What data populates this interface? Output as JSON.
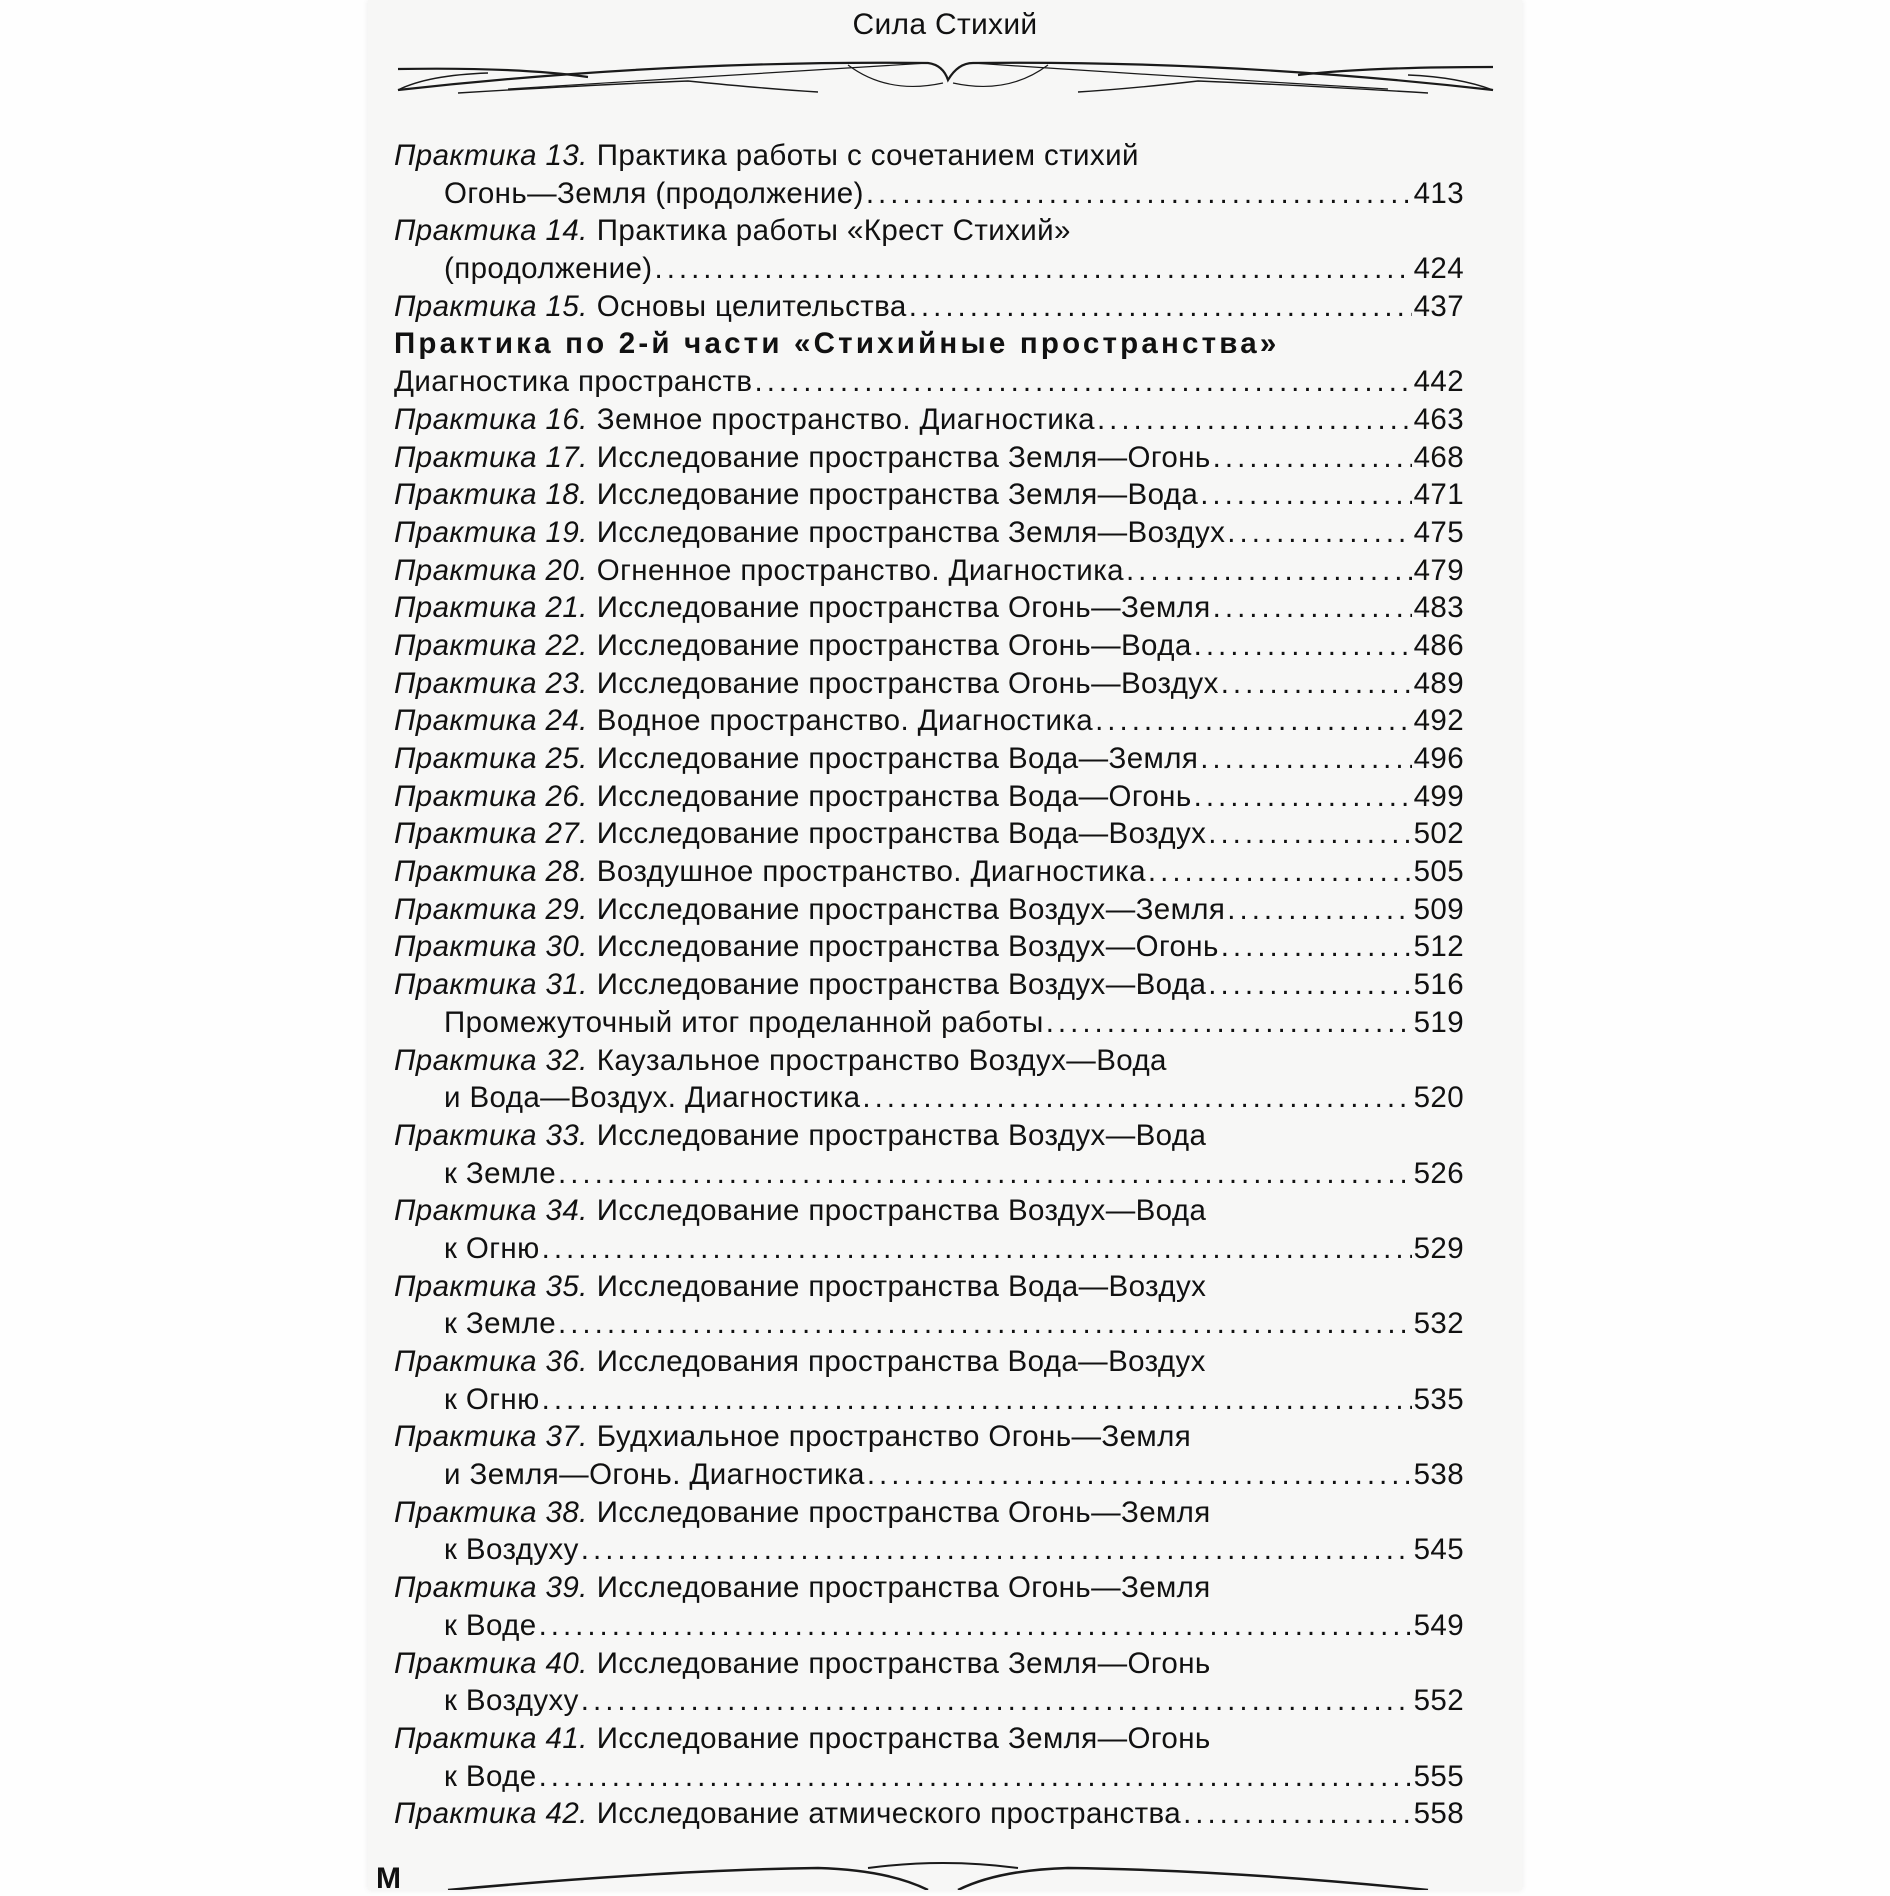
{
  "running_title": "Сила Стихий",
  "publisher_mark": "M",
  "toc": [
    {
      "prefix": "Практика 13.",
      "title": "Практика работы с сочетанием стихий",
      "cont": "Огонь—Земля (продолжение)",
      "page": "413"
    },
    {
      "prefix": "Практика 14.",
      "title": "Практика работы «Крест Стихий»",
      "cont": "(продолжение)",
      "page": "424"
    },
    {
      "prefix": "Практика 15.",
      "title": "Основы целительства",
      "page": "437"
    },
    {
      "heading": "Практика по 2-й части «Стихийные пространства»"
    },
    {
      "title": "Диагностика пространств",
      "page": "442"
    },
    {
      "prefix": "Практика 16.",
      "title": "Земное пространство. Диагностика",
      "page": "463"
    },
    {
      "prefix": "Практика 17.",
      "title": "Исследование пространства Земля—Огонь",
      "page": "468"
    },
    {
      "prefix": "Практика 18.",
      "title": "Исследование пространства Земля—Вода",
      "page": "471"
    },
    {
      "prefix": "Практика 19.",
      "title": "Исследование пространства Земля—Воздух",
      "page": "475"
    },
    {
      "prefix": "Практика 20.",
      "title": "Огненное пространство. Диагностика",
      "page": "479"
    },
    {
      "prefix": "Практика 21.",
      "title": "Исследование пространства Огонь—Земля",
      "page": "483"
    },
    {
      "prefix": "Практика 22.",
      "title": "Исследование пространства Огонь—Вода",
      "page": "486"
    },
    {
      "prefix": "Практика 23.",
      "title": "Исследование пространства Огонь—Воздух",
      "page": "489"
    },
    {
      "prefix": "Практика 24.",
      "title": "Водное пространство. Диагностика",
      "page": "492"
    },
    {
      "prefix": "Практика 25.",
      "title": "Исследование пространства Вода—Земля",
      "page": "496"
    },
    {
      "prefix": "Практика 26.",
      "title": "Исследование пространства Вода—Огонь",
      "page": "499"
    },
    {
      "prefix": "Практика 27.",
      "title": "Исследование пространства Вода—Воздух",
      "page": "502"
    },
    {
      "prefix": "Практика 28.",
      "title": "Воздушное пространство. Диагностика",
      "page": "505"
    },
    {
      "prefix": "Практика 29.",
      "title": "Исследование пространства Воздух—Земля",
      "page": "509"
    },
    {
      "prefix": "Практика 30.",
      "title": "Исследование пространства Воздух—Огонь",
      "page": "512"
    },
    {
      "prefix": "Практика 31.",
      "title": "Исследование пространства Воздух—Вода",
      "page": "516"
    },
    {
      "indent": true,
      "title": "Промежуточный итог проделанной работы",
      "page": "519"
    },
    {
      "prefix": "Практика 32.",
      "title": "Каузальное пространство Воздух—Вода",
      "cont": "и Вода—Воздух. Диагностика",
      "page": "520"
    },
    {
      "prefix": "Практика 33.",
      "title": "Исследование пространства Воздух—Вода",
      "cont": "к Земле",
      "page": "526"
    },
    {
      "prefix": "Практика 34.",
      "title": "Исследование пространства Воздух—Вода",
      "cont": "к Огню",
      "page": "529"
    },
    {
      "prefix": "Практика 35.",
      "title": "Исследование пространства Вода—Воздух",
      "cont": "к Земле",
      "page": "532"
    },
    {
      "prefix": "Практика 36.",
      "title": "Исследования пространства Вода—Воздух",
      "cont": "к Огню",
      "page": "535"
    },
    {
      "prefix": "Практика 37.",
      "title": "Будхиальное пространство Огонь—Земля",
      "cont": "и Земля—Огонь. Диагностика",
      "page": "538"
    },
    {
      "prefix": "Практика 38.",
      "title": "Исследование пространства Огонь—Земля",
      "cont": "к Воздуху",
      "page": "545"
    },
    {
      "prefix": "Практика 39.",
      "title": "Исследование пространства Огонь—Земля",
      "cont": "к Воде",
      "page": "549"
    },
    {
      "prefix": "Практика 40.",
      "title": "Исследование пространства Земля—Огонь",
      "cont": "к Воздуху",
      "page": "552"
    },
    {
      "prefix": "Практика 41.",
      "title": "Исследование пространства Земля—Огонь",
      "cont": "к Воде",
      "page": "555"
    },
    {
      "prefix": "Практика 42.",
      "title": "Исследование атмического пространства",
      "page": "558"
    }
  ]
}
